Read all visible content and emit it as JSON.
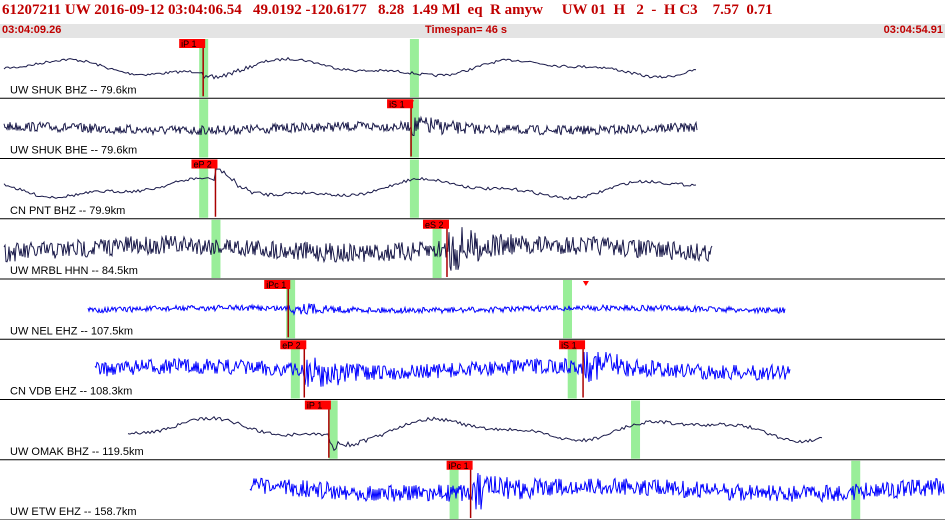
{
  "header": {
    "title": "61207211 UW 2016-09-12 03:04:06.54   49.0192 -120.6177   8.28  1.49 Ml  eq  R amyw     UW 01  H   2  -  H C3    7.57  0.71",
    "start_time": "03:04:09.26",
    "timespan": "Timespan=  46 s",
    "end_time": "03:04:54.91"
  },
  "colors": {
    "black_trace": "#1a1a4a",
    "blue_trace": "#0000ff",
    "pick_flag": "#ff0000",
    "window": "#99ee99"
  },
  "traces": [
    {
      "label": "UW SHUK BHZ -- 79.6km",
      "color": "black",
      "shape": "smooth",
      "amp": 0.4,
      "picks": [
        {
          "label": "iP 1",
          "at": 0.215
        }
      ],
      "windows": [
        0.215,
        0.438
      ]
    },
    {
      "label": "UW SHUK BHE -- 79.6km",
      "color": "black",
      "shape": "noisy",
      "amp": 0.25,
      "picks": [
        {
          "label": "iS 1",
          "at": 0.435,
          "arrow": true
        }
      ],
      "windows": [
        0.215,
        0.438
      ]
    },
    {
      "label": "CN PNT BHZ -- 79.9km",
      "color": "black",
      "shape": "smooth",
      "amp": 0.45,
      "picks": [
        {
          "label": "eP 2",
          "at": 0.228
        }
      ],
      "windows": [
        0.215,
        0.438
      ]
    },
    {
      "label": "UW MRBL HHN -- 84.5km",
      "color": "black",
      "shape": "noisy",
      "amp": 0.5,
      "picks": [
        {
          "label": "eS 2",
          "at": 0.473
        }
      ],
      "windows": [
        0.228,
        0.462
      ]
    },
    {
      "label": "UW NEL EHZ -- 107.5km",
      "color": "blue",
      "shape": "noisy",
      "amp": 0.15,
      "picks": [
        {
          "label": "iPc 1",
          "at": 0.305
        }
      ],
      "windows": [
        0.307,
        0.6
      ],
      "arrow_at": 0.62
    },
    {
      "label": "CN VDB EHZ -- 108.3km",
      "color": "blue",
      "shape": "noisy",
      "amp": 0.4,
      "picks": [
        {
          "label": "eP 2",
          "at": 0.322
        },
        {
          "label": "iS 1",
          "at": 0.617
        }
      ],
      "windows": [
        0.312,
        0.605
      ]
    },
    {
      "label": "UW OMAK BHZ -- 119.5km",
      "color": "black",
      "shape": "smooth",
      "amp": 0.5,
      "picks": [
        {
          "label": "iP 1",
          "at": 0.348
        }
      ],
      "windows": [
        0.352,
        0.672
      ]
    },
    {
      "label": "UW ETW EHZ -- 158.7km",
      "color": "blue",
      "shape": "noisy",
      "amp": 0.45,
      "picks": [
        {
          "label": "iPc 1",
          "at": 0.498
        }
      ],
      "windows": [
        0.48,
        0.905
      ]
    }
  ]
}
